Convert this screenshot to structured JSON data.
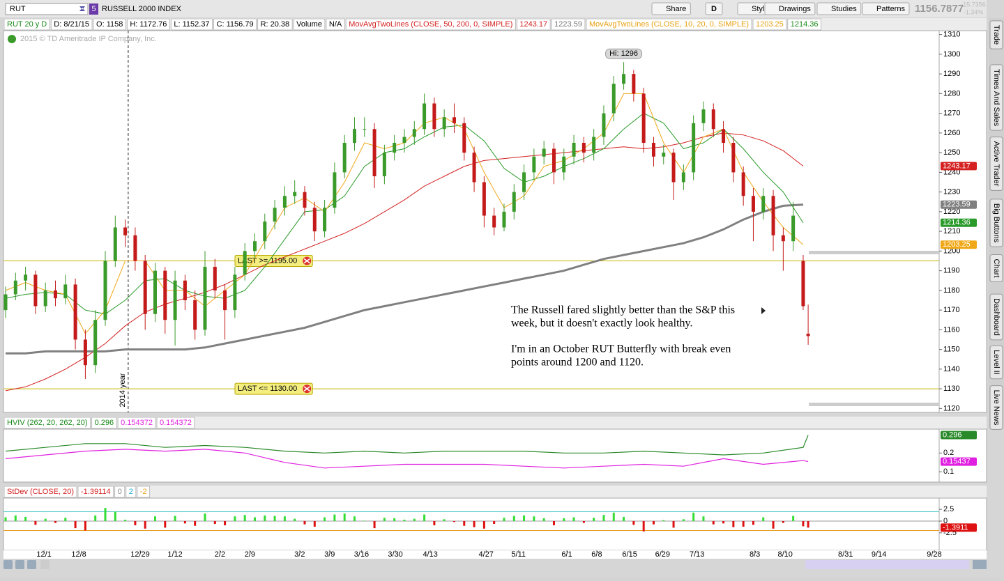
{
  "toolbar": {
    "symbol": "RUT",
    "badge": "5",
    "description": "RUSSELL 2000 INDEX",
    "buttons": [
      "Share",
      "D",
      "Style",
      "Drawings",
      "Studies",
      "Patterns"
    ],
    "last": "1156.7877",
    "change": "-15.7356",
    "change_pct": "-1.34%"
  },
  "header": [
    {
      "text": "RUT 20 y D",
      "color": "#1a8a1a"
    },
    {
      "text": "D: 8/21/15",
      "color": "#000"
    },
    {
      "text": "O: 1158",
      "color": "#000"
    },
    {
      "text": "H: 1172.76",
      "color": "#000"
    },
    {
      "text": "L: 1152.37",
      "color": "#000"
    },
    {
      "text": "C: 1156.79",
      "color": "#000"
    },
    {
      "text": "R: 20.38",
      "color": "#000"
    },
    {
      "text": "Volume",
      "color": "#000"
    },
    {
      "text": "N/A",
      "color": "#000"
    },
    {
      "text": "MovAvgTwoLines (CLOSE, 50, 200, 0, SIMPLE)",
      "color": "#d42020"
    },
    {
      "text": "1243.17",
      "color": "#d42020"
    },
    {
      "text": "1223.59",
      "color": "#777"
    },
    {
      "text": "MovAvgTwoLines (CLOSE, 10, 20, 0, SIMPLE)",
      "color": "#e8a010"
    },
    {
      "text": "1203.25",
      "color": "#e8a010"
    },
    {
      "text": "1214.36",
      "color": "#1a8a1a"
    }
  ],
  "sidebar": [
    "Trade",
    "Times And Sales",
    "Active Trader",
    "Big Buttons",
    "Chart",
    "Dashboard",
    "Level II",
    "Live News"
  ],
  "copyright": "2015 © TD Ameritrade IP Company, Inc.",
  "chart_data": [
    {
      "type": "candlestick",
      "up_color": "#3a9a2a",
      "down_color": "#c41a1a",
      "x": [
        0,
        2,
        4,
        6,
        8,
        10,
        12,
        14,
        16,
        18,
        20,
        22,
        24,
        26,
        28,
        30,
        32,
        34,
        36,
        38,
        40,
        42,
        44,
        46,
        48,
        50,
        52,
        54,
        56,
        58,
        60,
        62,
        64,
        66,
        68,
        70,
        72,
        74,
        76,
        78,
        80,
        82,
        84,
        86,
        88,
        90,
        92,
        94,
        96,
        98,
        100,
        102,
        104,
        106,
        108,
        110,
        112,
        114,
        116,
        118,
        120,
        122,
        124,
        126,
        128,
        130,
        132,
        134,
        136,
        138,
        140,
        142,
        144,
        146,
        148,
        150,
        152,
        154,
        156,
        158,
        160,
        161
      ],
      "open": [
        1170,
        1178,
        1185,
        1188,
        1172,
        1180,
        1176,
        1183,
        1155,
        1142,
        1165,
        1195,
        1212,
        1208,
        1195,
        1168,
        1190,
        1165,
        1185,
        1175,
        1160,
        1192,
        1180,
        1170,
        1188,
        1200,
        1205,
        1215,
        1222,
        1228,
        1230,
        1222,
        1210,
        1222,
        1240,
        1255,
        1262,
        1262,
        1238,
        1250,
        1255,
        1258,
        1262,
        1275,
        1262,
        1268,
        1265,
        1250,
        1235,
        1218,
        1212,
        1220,
        1230,
        1240,
        1248,
        1252,
        1240,
        1248,
        1255,
        1250,
        1258,
        1270,
        1285,
        1290,
        1280,
        1255,
        1248,
        1250,
        1235,
        1240,
        1265,
        1272,
        1262,
        1255,
        1240,
        1228,
        1220,
        1228,
        1208,
        1205,
        1195,
        1158
      ],
      "high": [
        1182,
        1189,
        1192,
        1190,
        1184,
        1185,
        1188,
        1186,
        1160,
        1170,
        1200,
        1218,
        1216,
        1212,
        1198,
        1194,
        1192,
        1190,
        1188,
        1180,
        1200,
        1196,
        1183,
        1192,
        1204,
        1209,
        1219,
        1226,
        1233,
        1236,
        1233,
        1225,
        1226,
        1245,
        1259,
        1268,
        1268,
        1265,
        1254,
        1259,
        1262,
        1266,
        1280,
        1278,
        1272,
        1275,
        1268,
        1253,
        1238,
        1222,
        1224,
        1234,
        1244,
        1252,
        1256,
        1255,
        1252,
        1259,
        1258,
        1262,
        1274,
        1289,
        1296,
        1292,
        1283,
        1258,
        1254,
        1252,
        1244,
        1269,
        1276,
        1275,
        1266,
        1258,
        1243,
        1232,
        1232,
        1231,
        1212,
        1225,
        1198,
        1172.76
      ],
      "low": [
        1166,
        1175,
        1180,
        1168,
        1169,
        1172,
        1173,
        1150,
        1135,
        1138,
        1162,
        1192,
        1202,
        1190,
        1160,
        1164,
        1158,
        1152,
        1170,
        1155,
        1157,
        1176,
        1155,
        1166,
        1185,
        1196,
        1201,
        1211,
        1218,
        1224,
        1218,
        1205,
        1207,
        1219,
        1237,
        1251,
        1258,
        1232,
        1234,
        1246,
        1250,
        1254,
        1259,
        1258,
        1258,
        1260,
        1246,
        1230,
        1212,
        1208,
        1210,
        1216,
        1226,
        1236,
        1244,
        1234,
        1236,
        1244,
        1245,
        1246,
        1254,
        1266,
        1282,
        1276,
        1250,
        1243,
        1244,
        1226,
        1231,
        1236,
        1261,
        1258,
        1250,
        1235,
        1223,
        1205,
        1216,
        1200,
        1190,
        1200,
        1170,
        1152.37
      ],
      "close": [
        1178,
        1185,
        1188,
        1172,
        1180,
        1176,
        1183,
        1155,
        1142,
        1165,
        1195,
        1212,
        1208,
        1195,
        1168,
        1190,
        1165,
        1185,
        1175,
        1160,
        1192,
        1180,
        1170,
        1188,
        1200,
        1205,
        1215,
        1222,
        1228,
        1230,
        1222,
        1210,
        1222,
        1240,
        1255,
        1262,
        1262,
        1238,
        1250,
        1255,
        1258,
        1262,
        1275,
        1262,
        1268,
        1265,
        1250,
        1235,
        1218,
        1212,
        1220,
        1230,
        1240,
        1248,
        1252,
        1240,
        1248,
        1255,
        1250,
        1258,
        1270,
        1285,
        1290,
        1280,
        1255,
        1248,
        1250,
        1235,
        1240,
        1265,
        1272,
        1262,
        1255,
        1240,
        1228,
        1220,
        1228,
        1208,
        1205,
        1218,
        1172,
        1156.79
      ],
      "line_x": [
        0,
        4,
        8,
        12,
        16,
        20,
        24,
        28,
        32,
        36,
        40,
        44,
        48,
        52,
        56,
        60,
        64,
        68,
        72,
        76,
        80,
        84,
        88,
        92,
        96,
        100,
        104,
        108,
        112,
        116,
        120,
        124,
        128,
        132,
        136,
        140,
        144,
        148,
        152,
        156,
        160
      ],
      "lines": [
        {
          "color": "#d42020",
          "width": 1,
          "label": "1243.17",
          "values": [
            1129,
            1131,
            1135,
            1140,
            1146,
            1153,
            1162,
            1169,
            1173,
            1176,
            1179,
            1183,
            1188,
            1193,
            1197,
            1201,
            1205,
            1209,
            1214,
            1220,
            1226,
            1233,
            1238,
            1243,
            1246,
            1247,
            1248,
            1249,
            1250,
            1251,
            1252,
            1253,
            1252,
            1253,
            1255,
            1258,
            1260,
            1259,
            1256,
            1251,
            1243.17
          ]
        },
        {
          "color": "#808080",
          "width": 3,
          "label": "1223.59",
          "values": [
            1148,
            1148,
            1149,
            1149,
            1149,
            1149,
            1150,
            1150,
            1150,
            1150,
            1151,
            1153,
            1155,
            1157,
            1159,
            1161,
            1164,
            1167,
            1170,
            1172,
            1174,
            1176,
            1178,
            1180,
            1182,
            1184,
            1186,
            1188,
            1190,
            1193,
            1196,
            1198,
            1200,
            1202,
            1204,
            1207,
            1211,
            1216,
            1220,
            1223,
            1223.59
          ]
        },
        {
          "color": "#2a9a2a",
          "width": 1,
          "label": "1214.36",
          "values": [
            1176,
            1178,
            1179,
            1178,
            1170,
            1168,
            1175,
            1185,
            1186,
            1180,
            1177,
            1176,
            1180,
            1192,
            1206,
            1220,
            1221,
            1228,
            1243,
            1250,
            1252,
            1258,
            1263,
            1264,
            1256,
            1242,
            1235,
            1238,
            1243,
            1247,
            1252,
            1262,
            1270,
            1265,
            1252,
            1255,
            1262,
            1252,
            1240,
            1230,
            1214.36
          ]
        },
        {
          "color": "#f0a818",
          "width": 1,
          "label": "1203.25",
          "values": [
            1180,
            1184,
            1180,
            1178,
            1158,
            1170,
            1195,
            1195,
            1180,
            1180,
            1172,
            1180,
            1188,
            1205,
            1222,
            1227,
            1220,
            1235,
            1255,
            1252,
            1255,
            1265,
            1268,
            1262,
            1240,
            1222,
            1228,
            1243,
            1246,
            1252,
            1260,
            1280,
            1280,
            1255,
            1240,
            1258,
            1262,
            1240,
            1225,
            1212,
            1203.25
          ]
        }
      ],
      "xlim": [
        0,
        187
      ],
      "xticks": [
        {
          "value": 7.7,
          "label": "12/1"
        },
        {
          "value": 14.7,
          "label": "12/8"
        },
        {
          "value": 27,
          "label": "12/29"
        },
        {
          "value": 34,
          "label": "1/12"
        },
        {
          "value": 43,
          "label": "2/2"
        },
        {
          "value": 49,
          "label": "2/9"
        },
        {
          "value": 59,
          "label": "3/2"
        },
        {
          "value": 65,
          "label": "3/9"
        },
        {
          "value": 71.4,
          "label": "3/16"
        },
        {
          "value": 78.2,
          "label": "3/30"
        },
        {
          "value": 85.2,
          "label": "4/13"
        },
        {
          "value": 96.4,
          "label": "4/27"
        },
        {
          "value": 102.9,
          "label": "5/11"
        },
        {
          "value": 112.6,
          "label": "6/1"
        },
        {
          "value": 118.6,
          "label": "6/8"
        },
        {
          "value": 125.2,
          "label": "6/15"
        },
        {
          "value": 131.8,
          "label": "6/29"
        },
        {
          "value": 138.7,
          "label": "7/13"
        },
        {
          "value": 150.3,
          "label": "8/3"
        },
        {
          "value": 156.4,
          "label": "8/10"
        },
        {
          "value": 168.5,
          "label": "8/31"
        },
        {
          "value": 175.2,
          "label": "9/14"
        },
        {
          "value": 186.3,
          "label": "9/28"
        }
      ],
      "ylim": [
        1118,
        1312
      ],
      "yticks": [
        1120,
        1130,
        1140,
        1150,
        1160,
        1170,
        1180,
        1190,
        1200,
        1210,
        1220,
        1230,
        1240,
        1250,
        1260,
        1270,
        1280,
        1290,
        1300,
        1310
      ],
      "high_label": {
        "text": "Hi: 1296",
        "value": 1296,
        "x": 124
      },
      "alerts": [
        {
          "label": "LAST >= 1195.00",
          "value": 1195
        },
        {
          "label": "LAST <= 1130.00",
          "value": 1130
        }
      ],
      "marker_line": {
        "label": "2014 year",
        "x": 24.6
      },
      "note": [
        "The Russell fared slightly better than the S&P this",
        "week, but it doesn't exactly look healthy.",
        "I'm in an October RUT Butterfly with break even",
        "points around 1200 and 1120."
      ]
    },
    {
      "type": "line",
      "header": [
        {
          "text": "HVIV (262, 20, 262, 20)",
          "color": "#1a8a1a"
        },
        {
          "text": "0.296",
          "color": "#1a8a1a"
        },
        {
          "text": "0.154372",
          "color": "#e020e0"
        },
        {
          "text": "0.154372",
          "color": "#e020e0"
        }
      ],
      "x": [
        0,
        8,
        16,
        24,
        32,
        40,
        48,
        56,
        64,
        72,
        80,
        88,
        96,
        104,
        112,
        120,
        128,
        136,
        144,
        152,
        160,
        161
      ],
      "series": [
        {
          "color": "#2a8a2a",
          "label": "0.296",
          "values": [
            0.21,
            0.23,
            0.25,
            0.25,
            0.23,
            0.24,
            0.23,
            0.21,
            0.2,
            0.21,
            0.2,
            0.21,
            0.21,
            0.21,
            0.2,
            0.2,
            0.21,
            0.2,
            0.19,
            0.2,
            0.23,
            0.296
          ]
        },
        {
          "color": "#e020e0",
          "label": "0.15437",
          "values": [
            0.17,
            0.19,
            0.21,
            0.22,
            0.21,
            0.22,
            0.2,
            0.15,
            0.12,
            0.13,
            0.14,
            0.14,
            0.14,
            0.13,
            0.12,
            0.13,
            0.14,
            0.13,
            0.17,
            0.14,
            0.16,
            0.154372
          ]
        }
      ],
      "xlim": [
        0,
        187
      ],
      "ylim": [
        0.06,
        0.32
      ],
      "yticks": [
        0.1,
        0.2
      ]
    },
    {
      "type": "bar",
      "header": [
        {
          "text": "StDev (CLOSE, 20)",
          "color": "#d42020"
        },
        {
          "text": "-1.39114",
          "color": "#d42020"
        },
        {
          "text": "0",
          "color": "#888"
        },
        {
          "text": "2",
          "color": "#22aacc"
        },
        {
          "text": "-2",
          "color": "#e8a020"
        }
      ],
      "x": [
        0,
        2,
        4,
        6,
        8,
        10,
        12,
        14,
        16,
        18,
        20,
        22,
        24,
        26,
        28,
        30,
        32,
        34,
        36,
        38,
        40,
        42,
        44,
        46,
        48,
        50,
        52,
        54,
        56,
        58,
        60,
        62,
        64,
        66,
        68,
        70,
        72,
        74,
        76,
        78,
        80,
        82,
        84,
        86,
        88,
        90,
        92,
        94,
        96,
        98,
        100,
        102,
        104,
        106,
        108,
        110,
        112,
        114,
        116,
        118,
        120,
        122,
        124,
        126,
        128,
        130,
        132,
        134,
        136,
        138,
        140,
        142,
        144,
        146,
        148,
        150,
        152,
        154,
        156,
        158,
        160,
        161
      ],
      "values": [
        0.8,
        1.2,
        0.9,
        -0.8,
        0.5,
        -0.4,
        0.7,
        -1.5,
        -2.0,
        1.2,
        2.8,
        2.0,
        0.3,
        -0.9,
        -1.6,
        1.0,
        -1.4,
        1.1,
        -0.5,
        -1.0,
        1.6,
        -0.6,
        -0.9,
        1.0,
        1.3,
        0.8,
        1.2,
        1.1,
        1.0,
        0.5,
        -0.7,
        -1.2,
        0.8,
        1.4,
        1.6,
        1.0,
        0.1,
        -1.5,
        0.7,
        0.6,
        0.3,
        0.5,
        1.4,
        -0.9,
        0.4,
        -0.2,
        -1.0,
        -1.3,
        -1.6,
        -0.6,
        0.7,
        1.1,
        1.2,
        1.0,
        0.6,
        -0.9,
        0.6,
        0.8,
        -0.4,
        0.7,
        1.3,
        1.8,
        0.9,
        -0.8,
        -2.2,
        -0.7,
        0.2,
        -1.4,
        0.4,
        1.8,
        1.0,
        -0.7,
        -0.5,
        -1.3,
        -1.2,
        -0.8,
        0.8,
        -1.6,
        -0.4,
        1.1,
        -1.1,
        -1.39114
      ],
      "last_label": "-1.3911",
      "up_color": "#33dd33",
      "down_color": "#dd1111",
      "levels": [
        {
          "value": 2,
          "color": "#55cccc"
        },
        {
          "value": 0,
          "color": "#999"
        },
        {
          "value": -2,
          "color": "#e8a020"
        }
      ],
      "xlim": [
        0,
        187
      ],
      "ylim": [
        -4,
        4
      ],
      "yticks": [
        2.5,
        0,
        -2.5
      ]
    }
  ]
}
